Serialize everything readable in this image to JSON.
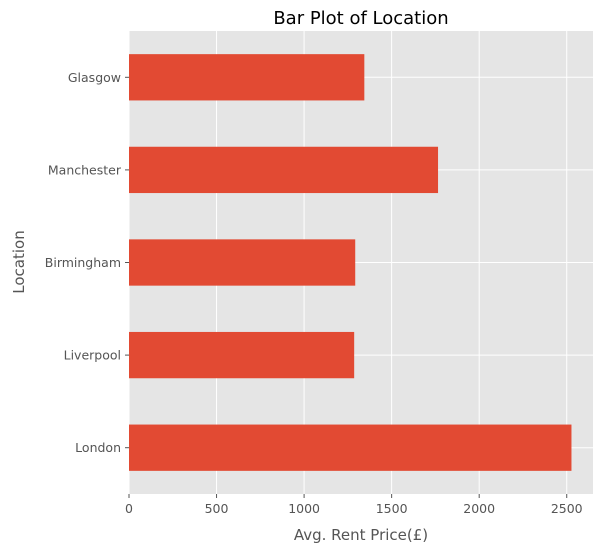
{
  "chart_data": {
    "type": "bar",
    "orientation": "horizontal",
    "title": "Bar Plot of Location",
    "xlabel": "Avg. Rent Price(£)",
    "ylabel": "Location",
    "categories": [
      "London",
      "Liverpool",
      "Birmingham",
      "Manchester",
      "Glasgow"
    ],
    "values": [
      2527,
      1286,
      1292,
      1765,
      1344
    ],
    "xlim": [
      0,
      2650
    ],
    "xticks": [
      0,
      500,
      1000,
      1500,
      2000,
      2500
    ],
    "grid": true,
    "legend": "none",
    "colors": {
      "bar": "#E24A33",
      "plot_background": "#E5E5E5",
      "grid": "#FFFFFF"
    }
  }
}
